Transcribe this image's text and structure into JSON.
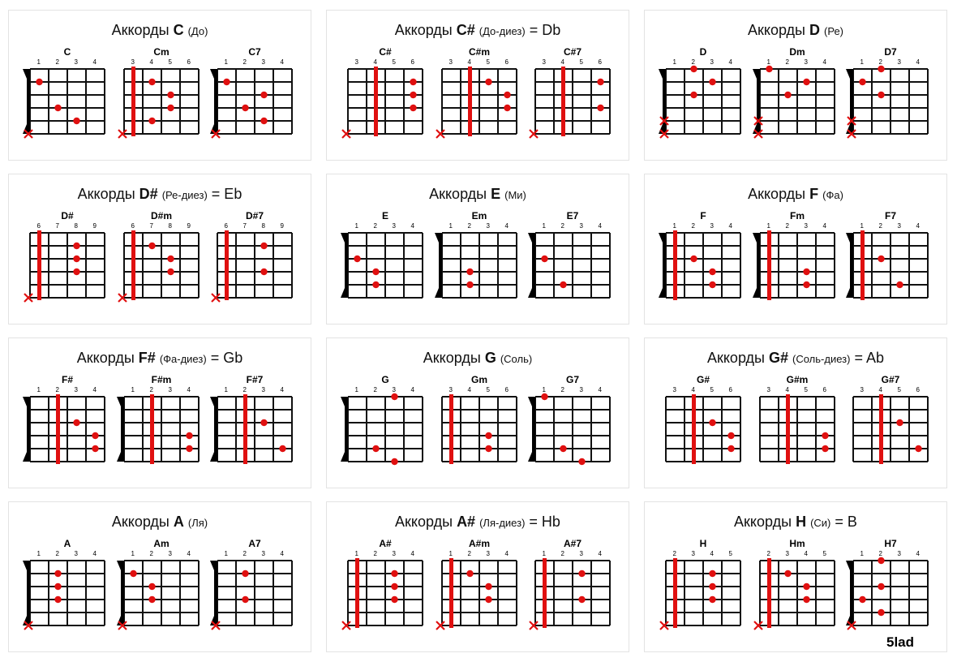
{
  "brand": "5lad",
  "title_prefix": "Аккорды",
  "groups": [
    {
      "note": "C",
      "sub": "(До)",
      "alt": "",
      "chords": [
        {
          "name": "C",
          "frets": [
            "1",
            "2",
            "3",
            "4"
          ],
          "nut": true,
          "barre": null,
          "dots": [
            [
              1,
              1
            ],
            [
              3,
              2
            ],
            [
              4,
              3
            ]
          ],
          "mutes": [
            5
          ]
        },
        {
          "name": "Cm",
          "frets": [
            "3",
            "4",
            "5",
            "6"
          ],
          "nut": false,
          "barre": 1,
          "dots": [
            [
              1,
              2
            ],
            [
              2,
              3
            ],
            [
              3,
              3
            ],
            [
              4,
              2
            ]
          ],
          "mutes": [
            5
          ]
        },
        {
          "name": "C7",
          "frets": [
            "1",
            "2",
            "3",
            "4"
          ],
          "nut": true,
          "barre": null,
          "dots": [
            [
              1,
              1
            ],
            [
              2,
              3
            ],
            [
              3,
              2
            ],
            [
              4,
              3
            ]
          ],
          "mutes": [
            5
          ]
        }
      ]
    },
    {
      "note": "C#",
      "sub": "(До-диез)",
      "alt": "= Db",
      "chords": [
        {
          "name": "C#",
          "frets": [
            "3",
            "4",
            "5",
            "6"
          ],
          "nut": false,
          "barre": 2,
          "dots": [
            [
              1,
              4
            ],
            [
              2,
              4
            ],
            [
              3,
              4
            ]
          ],
          "mutes": [
            5
          ]
        },
        {
          "name": "C#m",
          "frets": [
            "3",
            "4",
            "5",
            "6"
          ],
          "nut": false,
          "barre": 2,
          "dots": [
            [
              1,
              3
            ],
            [
              2,
              4
            ],
            [
              3,
              4
            ]
          ],
          "mutes": [
            5
          ]
        },
        {
          "name": "C#7",
          "frets": [
            "3",
            "4",
            "5",
            "6"
          ],
          "nut": false,
          "barre": 2,
          "dots": [
            [
              1,
              4
            ],
            [
              3,
              4
            ]
          ],
          "mutes": [
            5
          ]
        }
      ]
    },
    {
      "note": "D",
      "sub": "(Ре)",
      "alt": "",
      "chords": [
        {
          "name": "D",
          "frets": [
            "1",
            "2",
            "3",
            "4"
          ],
          "nut": true,
          "barre": null,
          "dots": [
            [
              0,
              2
            ],
            [
              1,
              3
            ],
            [
              2,
              2
            ]
          ],
          "mutes": [
            4,
            5
          ]
        },
        {
          "name": "Dm",
          "frets": [
            "1",
            "2",
            "3",
            "4"
          ],
          "nut": true,
          "barre": null,
          "dots": [
            [
              0,
              1
            ],
            [
              1,
              3
            ],
            [
              2,
              2
            ]
          ],
          "mutes": [
            4,
            5
          ]
        },
        {
          "name": "D7",
          "frets": [
            "1",
            "2",
            "3",
            "4"
          ],
          "nut": true,
          "barre": null,
          "dots": [
            [
              0,
              2
            ],
            [
              1,
              1
            ],
            [
              2,
              2
            ]
          ],
          "mutes": [
            4,
            5
          ]
        }
      ]
    },
    {
      "note": "D#",
      "sub": "(Ре-диез)",
      "alt": "= Eb",
      "chords": [
        {
          "name": "D#",
          "frets": [
            "6",
            "7",
            "8",
            "9"
          ],
          "nut": false,
          "barre": 1,
          "dots": [
            [
              1,
              3
            ],
            [
              2,
              3
            ],
            [
              3,
              3
            ]
          ],
          "mutes": [
            5
          ]
        },
        {
          "name": "D#m",
          "frets": [
            "6",
            "7",
            "8",
            "9"
          ],
          "nut": false,
          "barre": 1,
          "dots": [
            [
              1,
              2
            ],
            [
              2,
              3
            ],
            [
              3,
              3
            ]
          ],
          "mutes": [
            5
          ]
        },
        {
          "name": "D#7",
          "frets": [
            "6",
            "7",
            "8",
            "9"
          ],
          "nut": false,
          "barre": 1,
          "dots": [
            [
              1,
              3
            ],
            [
              3,
              3
            ]
          ],
          "mutes": [
            5
          ]
        }
      ]
    },
    {
      "note": "E",
      "sub": "(Ми)",
      "alt": "",
      "chords": [
        {
          "name": "E",
          "frets": [
            "1",
            "2",
            "3",
            "4"
          ],
          "nut": true,
          "barre": null,
          "dots": [
            [
              2,
              1
            ],
            [
              3,
              2
            ],
            [
              4,
              2
            ]
          ],
          "mutes": []
        },
        {
          "name": "Em",
          "frets": [
            "1",
            "2",
            "3",
            "4"
          ],
          "nut": true,
          "barre": null,
          "dots": [
            [
              3,
              2
            ],
            [
              4,
              2
            ]
          ],
          "mutes": []
        },
        {
          "name": "E7",
          "frets": [
            "1",
            "2",
            "3",
            "4"
          ],
          "nut": true,
          "barre": null,
          "dots": [
            [
              2,
              1
            ],
            [
              4,
              2
            ]
          ],
          "mutes": []
        }
      ]
    },
    {
      "note": "F",
      "sub": "(Фа)",
      "alt": "",
      "chords": [
        {
          "name": "F",
          "frets": [
            "1",
            "2",
            "3",
            "4"
          ],
          "nut": true,
          "barre": 1,
          "dots": [
            [
              2,
              2
            ],
            [
              3,
              3
            ],
            [
              4,
              3
            ]
          ],
          "mutes": []
        },
        {
          "name": "Fm",
          "frets": [
            "1",
            "2",
            "3",
            "4"
          ],
          "nut": true,
          "barre": 1,
          "dots": [
            [
              3,
              3
            ],
            [
              4,
              3
            ]
          ],
          "mutes": []
        },
        {
          "name": "F7",
          "frets": [
            "1",
            "2",
            "3",
            "4"
          ],
          "nut": true,
          "barre": 1,
          "dots": [
            [
              2,
              2
            ],
            [
              4,
              3
            ]
          ],
          "mutes": []
        }
      ]
    },
    {
      "note": "F#",
      "sub": "(Фа-диез)",
      "alt": "= Gb",
      "chords": [
        {
          "name": "F#",
          "frets": [
            "1",
            "2",
            "3",
            "4"
          ],
          "nut": true,
          "barre": 2,
          "dots": [
            [
              2,
              3
            ],
            [
              3,
              4
            ],
            [
              4,
              4
            ]
          ],
          "mutes": []
        },
        {
          "name": "F#m",
          "frets": [
            "1",
            "2",
            "3",
            "4"
          ],
          "nut": true,
          "barre": 2,
          "dots": [
            [
              3,
              4
            ],
            [
              4,
              4
            ]
          ],
          "mutes": []
        },
        {
          "name": "F#7",
          "frets": [
            "1",
            "2",
            "3",
            "4"
          ],
          "nut": true,
          "barre": 2,
          "dots": [
            [
              2,
              3
            ],
            [
              4,
              4
            ]
          ],
          "mutes": []
        }
      ]
    },
    {
      "note": "G",
      "sub": "(Соль)",
      "alt": "",
      "chords": [
        {
          "name": "G",
          "frets": [
            "1",
            "2",
            "3",
            "4"
          ],
          "nut": true,
          "barre": null,
          "dots": [
            [
              0,
              3
            ],
            [
              4,
              2
            ],
            [
              5,
              3
            ]
          ],
          "mutes": []
        },
        {
          "name": "Gm",
          "frets": [
            "3",
            "4",
            "5",
            "6"
          ],
          "nut": false,
          "barre": 1,
          "dots": [
            [
              3,
              3
            ],
            [
              4,
              3
            ]
          ],
          "mutes": []
        },
        {
          "name": "G7",
          "frets": [
            "1",
            "2",
            "3",
            "4"
          ],
          "nut": true,
          "barre": null,
          "dots": [
            [
              0,
              1
            ],
            [
              4,
              2
            ],
            [
              5,
              3
            ]
          ],
          "mutes": []
        }
      ]
    },
    {
      "note": "G#",
      "sub": "(Соль-диез)",
      "alt": "= Ab",
      "chords": [
        {
          "name": "G#",
          "frets": [
            "3",
            "4",
            "5",
            "6"
          ],
          "nut": false,
          "barre": 2,
          "dots": [
            [
              2,
              3
            ],
            [
              3,
              4
            ],
            [
              4,
              4
            ]
          ],
          "mutes": []
        },
        {
          "name": "G#m",
          "frets": [
            "3",
            "4",
            "5",
            "6"
          ],
          "nut": false,
          "barre": 2,
          "dots": [
            [
              3,
              4
            ],
            [
              4,
              4
            ]
          ],
          "mutes": []
        },
        {
          "name": "G#7",
          "frets": [
            "3",
            "4",
            "5",
            "6"
          ],
          "nut": false,
          "barre": 2,
          "dots": [
            [
              2,
              3
            ],
            [
              4,
              4
            ]
          ],
          "mutes": []
        }
      ]
    },
    {
      "note": "A",
      "sub": "(Ля)",
      "alt": "",
      "chords": [
        {
          "name": "A",
          "frets": [
            "1",
            "2",
            "3",
            "4"
          ],
          "nut": true,
          "barre": null,
          "dots": [
            [
              1,
              2
            ],
            [
              2,
              2
            ],
            [
              3,
              2
            ]
          ],
          "mutes": [
            5
          ]
        },
        {
          "name": "Am",
          "frets": [
            "1",
            "2",
            "3",
            "4"
          ],
          "nut": true,
          "barre": null,
          "dots": [
            [
              1,
              1
            ],
            [
              2,
              2
            ],
            [
              3,
              2
            ]
          ],
          "mutes": [
            5
          ]
        },
        {
          "name": "A7",
          "frets": [
            "1",
            "2",
            "3",
            "4"
          ],
          "nut": true,
          "barre": null,
          "dots": [
            [
              1,
              2
            ],
            [
              3,
              2
            ]
          ],
          "mutes": [
            5
          ]
        }
      ]
    },
    {
      "note": "A#",
      "sub": "(Ля-диез)",
      "alt": "= Hb",
      "chords": [
        {
          "name": "A#",
          "frets": [
            "1",
            "2",
            "3",
            "4"
          ],
          "nut": false,
          "barre": 1,
          "dots": [
            [
              1,
              3
            ],
            [
              2,
              3
            ],
            [
              3,
              3
            ]
          ],
          "mutes": [
            5
          ]
        },
        {
          "name": "A#m",
          "frets": [
            "1",
            "2",
            "3",
            "4"
          ],
          "nut": false,
          "barre": 1,
          "dots": [
            [
              1,
              2
            ],
            [
              2,
              3
            ],
            [
              3,
              3
            ]
          ],
          "mutes": [
            5
          ]
        },
        {
          "name": "A#7",
          "frets": [
            "1",
            "2",
            "3",
            "4"
          ],
          "nut": false,
          "barre": 1,
          "dots": [
            [
              1,
              3
            ],
            [
              3,
              3
            ]
          ],
          "mutes": [
            5
          ]
        }
      ]
    },
    {
      "note": "H",
      "sub": "(Си)",
      "alt": "= B",
      "chords": [
        {
          "name": "H",
          "frets": [
            "2",
            "3",
            "4",
            "5"
          ],
          "nut": false,
          "barre": 1,
          "dots": [
            [
              1,
              3
            ],
            [
              2,
              3
            ],
            [
              3,
              3
            ]
          ],
          "mutes": [
            5
          ]
        },
        {
          "name": "Hm",
          "frets": [
            "2",
            "3",
            "4",
            "5"
          ],
          "nut": false,
          "barre": 1,
          "dots": [
            [
              1,
              2
            ],
            [
              2,
              3
            ],
            [
              3,
              3
            ]
          ],
          "mutes": [
            5
          ]
        },
        {
          "name": "H7",
          "frets": [
            "1",
            "2",
            "3",
            "4"
          ],
          "nut": true,
          "barre": null,
          "dots": [
            [
              0,
              2
            ],
            [
              2,
              2
            ],
            [
              3,
              1
            ],
            [
              4,
              2
            ]
          ],
          "mutes": [
            5
          ]
        }
      ]
    }
  ],
  "colors": {
    "dot": "#e01010",
    "barre": "#e01010",
    "mute": "#e01010",
    "grid": "#111111",
    "nut": "#000000"
  }
}
